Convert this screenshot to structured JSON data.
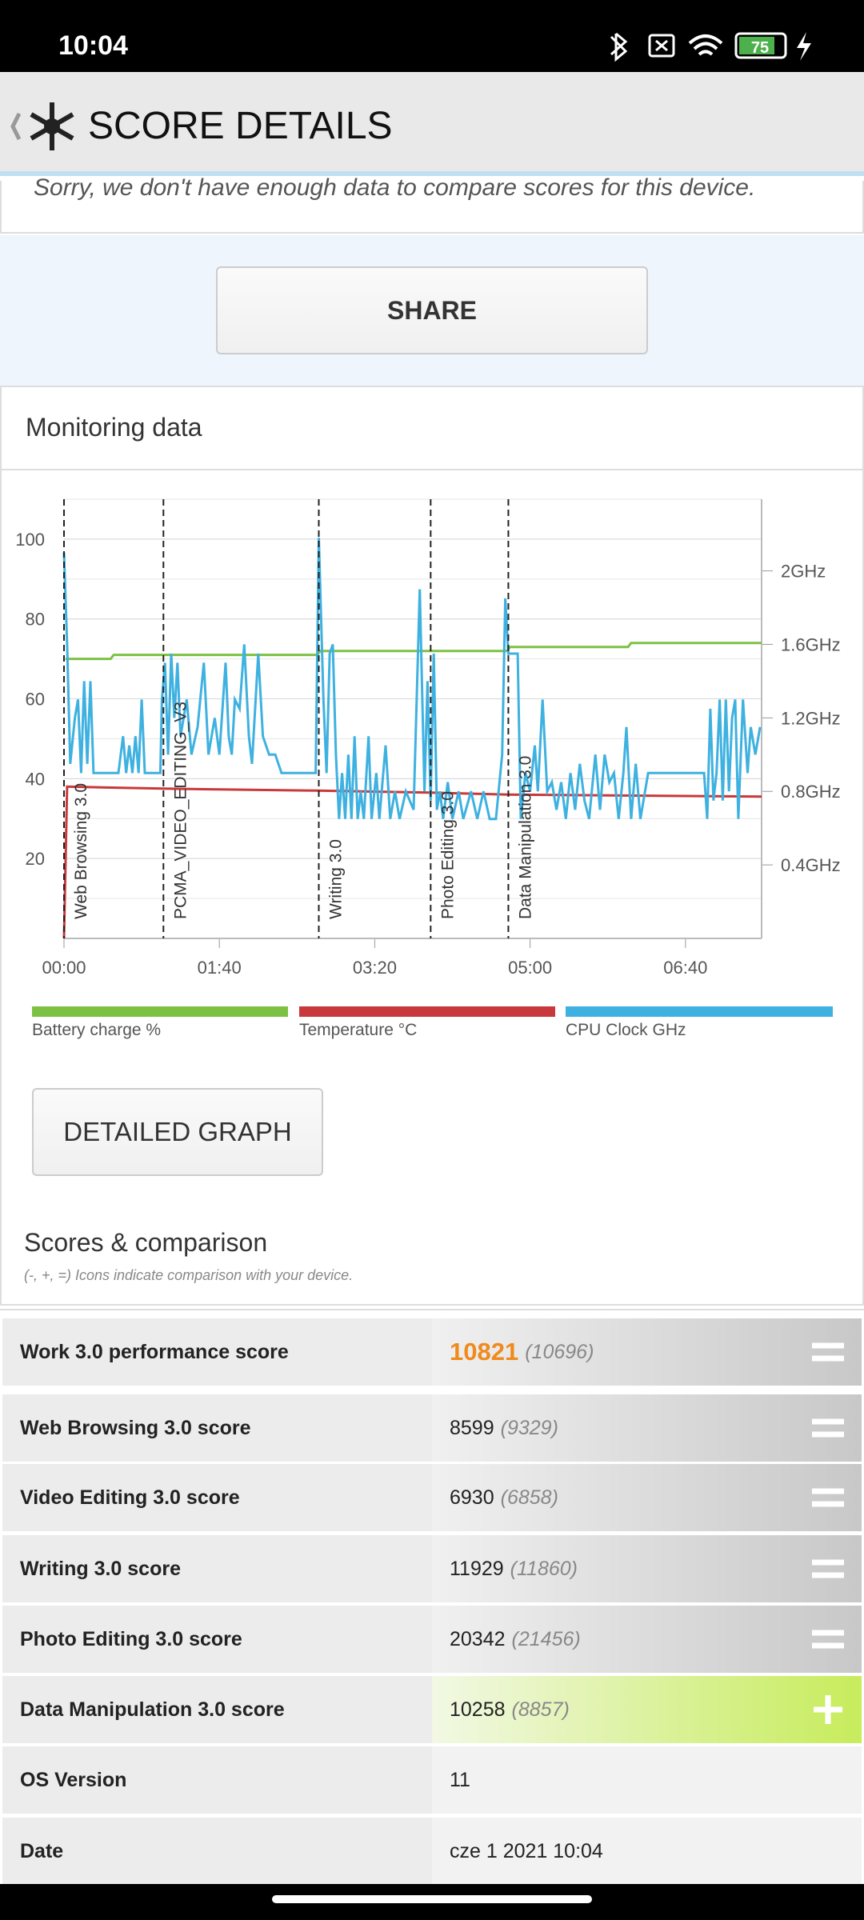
{
  "status_bar": {
    "time": "10:04",
    "battery": "75"
  },
  "header": {
    "title": "SCORE DETAILS"
  },
  "notice": "Sorry, we don't have enough data to compare scores for this device.",
  "share_button": "SHARE",
  "monitoring": {
    "title": "Monitoring data",
    "button": "DETAILED GRAPH"
  },
  "chart_data": {
    "type": "line",
    "xlim": [
      0,
      449
    ],
    "ylim": [
      0,
      110
    ],
    "y2lim": [
      0,
      2.39
    ],
    "xticks": [
      {
        "value": 0,
        "label": "00:00"
      },
      {
        "value": 100,
        "label": "01:40"
      },
      {
        "value": 200,
        "label": "03:20"
      },
      {
        "value": 300,
        "label": "05:00"
      },
      {
        "value": 400,
        "label": "06:40"
      }
    ],
    "yticks": [
      20,
      40,
      60,
      80,
      100
    ],
    "y2ticks": [
      {
        "value": 0.4,
        "label": "0.4GHz"
      },
      {
        "value": 0.8,
        "label": "0.8GHz"
      },
      {
        "value": 1.2,
        "label": "1.2GHz"
      },
      {
        "value": 1.6,
        "label": "1.6GHz"
      },
      {
        "value": 2,
        "label": "2GHz"
      }
    ],
    "grid": true,
    "markers": [
      {
        "x": 0,
        "label": "Web Browsing 3.0"
      },
      {
        "x": 64,
        "label": "PCMA_VIDEO_EDITING_V3"
      },
      {
        "x": 164,
        "label": "Writing 3.0"
      },
      {
        "x": 236,
        "label": "Photo Editing 3.0"
      },
      {
        "x": 286,
        "label": "Data Manipulation 3.0"
      }
    ],
    "series": [
      {
        "name": "Battery charge %",
        "color": "#7cc142",
        "x": [
          1,
          30,
          32,
          163,
          165,
          285,
          287,
          363,
          365,
          449
        ],
        "values": [
          70,
          70,
          71,
          71,
          72,
          72,
          73,
          73,
          74,
          74
        ]
      },
      {
        "name": "Temperature °C",
        "color": "#c9383a",
        "x": [
          0,
          2,
          64,
          163,
          236,
          286,
          449
        ],
        "values": [
          0,
          38,
          37.5,
          37,
          36.5,
          36,
          35.5
        ]
      },
      {
        "name": "CPU Clock GHz",
        "color": "#3eb1e0",
        "axis": "y2",
        "x": [
          0,
          2,
          4,
          7,
          9,
          11,
          13,
          15,
          17,
          19,
          21,
          35,
          38,
          40,
          42,
          44,
          46,
          48,
          50,
          52,
          62,
          63,
          65,
          67,
          69,
          71,
          73,
          75,
          79,
          82,
          86,
          90,
          93,
          97,
          100,
          104,
          106,
          108,
          110,
          113,
          116,
          119,
          121,
          125,
          128,
          132,
          136,
          140,
          162,
          164,
          167,
          169,
          171,
          173,
          175,
          177,
          179,
          181,
          183,
          185,
          187,
          189,
          191,
          193,
          196,
          198,
          201,
          203,
          207,
          210,
          213,
          216,
          220,
          225,
          229,
          232,
          234,
          236,
          238,
          240,
          242,
          244,
          247,
          250,
          254,
          257,
          262,
          266,
          270,
          274,
          278,
          282,
          284,
          286,
          292,
          294,
          297,
          300,
          303,
          305,
          308,
          311,
          314,
          317,
          320,
          323,
          326,
          329,
          332,
          335,
          338,
          342,
          345,
          348,
          351,
          354,
          357,
          360,
          362,
          365,
          368,
          371,
          374,
          376,
          412,
          414,
          416,
          418,
          420,
          422,
          424,
          426,
          428,
          430,
          432,
          434,
          437,
          440,
          442,
          445,
          448
        ],
        "values": [
          2.1,
          1.6,
          0.95,
          1.2,
          1.3,
          0.9,
          1.4,
          0.95,
          1.4,
          0.9,
          0.9,
          0.9,
          1.1,
          0.9,
          1.05,
          0.9,
          1.1,
          0.9,
          1.3,
          0.9,
          0.9,
          1.3,
          1.5,
          1.0,
          1.55,
          1.2,
          1.5,
          1.1,
          1.3,
          1.0,
          1.15,
          1.5,
          1.0,
          1.2,
          1.0,
          1.5,
          1.1,
          1.0,
          1.3,
          1.25,
          1.6,
          1.1,
          0.95,
          1.55,
          1.1,
          1.0,
          1.0,
          0.9,
          0.9,
          2.18,
          1.3,
          0.9,
          1.55,
          1.6,
          1.0,
          0.65,
          0.9,
          0.65,
          1.0,
          0.65,
          1.1,
          0.65,
          0.8,
          0.65,
          1.1,
          0.65,
          0.9,
          0.65,
          1.05,
          0.65,
          0.8,
          0.65,
          0.8,
          0.7,
          1.9,
          0.8,
          1.4,
          0.75,
          1.55,
          0.7,
          0.8,
          0.65,
          0.85,
          0.65,
          0.8,
          0.65,
          0.8,
          0.65,
          0.8,
          0.65,
          0.65,
          1.0,
          1.85,
          1.55,
          1.55,
          0.65,
          0.9,
          0.8,
          1.05,
          0.8,
          1.3,
          0.8,
          0.85,
          0.7,
          0.85,
          0.65,
          0.9,
          0.7,
          0.95,
          0.75,
          0.65,
          1.0,
          0.7,
          1.0,
          0.85,
          0.9,
          0.65,
          0.9,
          1.15,
          0.65,
          0.95,
          0.65,
          0.8,
          0.9,
          0.9,
          0.65,
          1.25,
          0.75,
          0.9,
          1.3,
          0.75,
          1.3,
          0.8,
          1.2,
          1.3,
          0.65,
          1.3,
          0.9,
          1.15,
          1.0,
          1.15
        ]
      }
    ]
  },
  "scores": {
    "title": "Scores & comparison",
    "subtitle": "(-, +, =) Icons indicate comparison with your device.",
    "rows": [
      {
        "label": "Work 3.0 performance score",
        "value": "10821",
        "reference": "(10696)",
        "indicator": "equal",
        "highlight": true
      },
      {
        "label": "Web Browsing 3.0 score",
        "value": "8599",
        "reference": "(9329)",
        "indicator": "equal"
      },
      {
        "label": "Video Editing 3.0 score",
        "value": "6930",
        "reference": "(6858)",
        "indicator": "equal"
      },
      {
        "label": "Writing 3.0 score",
        "value": "11929",
        "reference": "(11860)",
        "indicator": "equal"
      },
      {
        "label": "Photo Editing 3.0 score",
        "value": "20342",
        "reference": "(21456)",
        "indicator": "equal"
      },
      {
        "label": "Data Manipulation 3.0 score",
        "value": "10258",
        "reference": "(8857)",
        "indicator": "plus"
      },
      {
        "label": "OS Version",
        "value": "11"
      },
      {
        "label": "Date",
        "value": "cze 1 2021 10:04"
      }
    ]
  }
}
